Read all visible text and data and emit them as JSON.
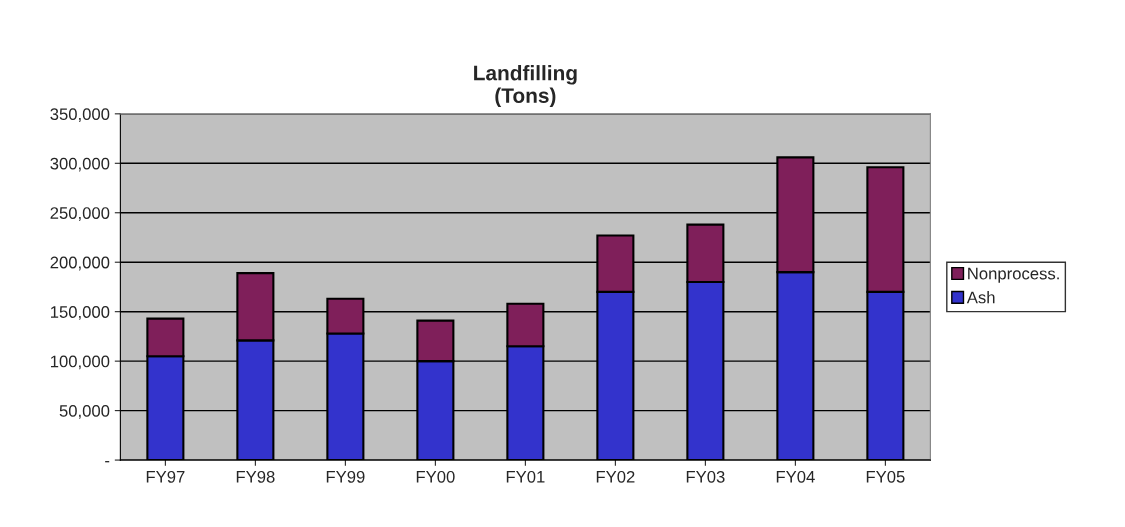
{
  "chart_data": {
    "type": "bar",
    "title": "Landfilling\n(Tons)",
    "stacked": true,
    "categories": [
      "FY97",
      "FY98",
      "FY99",
      "FY00",
      "FY01",
      "FY02",
      "FY03",
      "FY04",
      "FY05"
    ],
    "series": [
      {
        "name": "Ash",
        "color": "#3333cc",
        "values": [
          105000,
          121000,
          128000,
          100000,
          115000,
          170000,
          180000,
          190000,
          170000
        ]
      },
      {
        "name": "Nonprocess.",
        "color": "#7f1f5a",
        "values": [
          38000,
          68000,
          35000,
          41000,
          43000,
          57000,
          58000,
          116000,
          126000
        ]
      }
    ],
    "ylim": [
      0,
      350000
    ],
    "yticks": [
      {
        "value": 0,
        "label": "-"
      },
      {
        "value": 50000,
        "label": "50,000"
      },
      {
        "value": 100000,
        "label": "100,000"
      },
      {
        "value": 150000,
        "label": "150,000"
      },
      {
        "value": 200000,
        "label": "200,000"
      },
      {
        "value": 250000,
        "label": "250,000"
      },
      {
        "value": 300000,
        "label": "300,000"
      },
      {
        "value": 350000,
        "label": "350,000"
      }
    ],
    "grid": "y",
    "legend": "right"
  }
}
